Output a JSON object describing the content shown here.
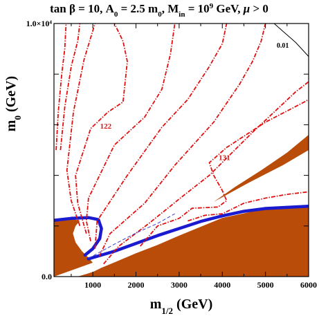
{
  "chart_data": {
    "type": "line",
    "title_parts": {
      "a": "tan ",
      "beta": "β",
      "b": " = 10, A",
      "sub0": "0",
      "c": " = 2.5 m",
      "sub1": "0",
      "d": ", M",
      "sub2": "in",
      "e": " = 10",
      "sup": "9",
      "f": " GeV, ",
      "mu": "μ",
      "g": " > 0"
    },
    "xlabel_main": "m",
    "xlabel_sub": "1/2",
    "xlabel_unit": " (GeV)",
    "ylabel_main": "m",
    "ylabel_sub": "0",
    "ylabel_unit": " (GeV)",
    "xlim": [
      100,
      6000
    ],
    "ylim": [
      0,
      10000
    ],
    "xticks": [
      1000,
      2000,
      3000,
      4000,
      5000,
      6000
    ],
    "xtick_labels": [
      "1000",
      "2000",
      "3000",
      "4000",
      "5000",
      "6000"
    ],
    "yticks": [
      0,
      10000
    ],
    "ytick_labels": [
      "0.0",
      "1.0×10⁴"
    ],
    "annotations": [
      {
        "text": "122",
        "x": 1300,
        "y": 5850
      },
      {
        "text": "131",
        "x": 4050,
        "y": 4600
      },
      {
        "text": "0.01",
        "x": 5400,
        "y": 9050
      }
    ],
    "colors": {
      "excluded_region": "#b84c08",
      "relic_density_strip": "#1a1ad0",
      "higgs_contours": "#e01010",
      "dashed_line": "#3a3ad8",
      "solid_line": "#000000"
    },
    "regions": {
      "stau_lsp_region": [
        [
          100,
          0
        ],
        [
          6000,
          0
        ],
        [
          6000,
          2780
        ],
        [
          5000,
          2680
        ],
        [
          4000,
          2320
        ],
        [
          3000,
          1620
        ],
        [
          2500,
          1250
        ],
        [
          2000,
          920
        ],
        [
          1500,
          560
        ],
        [
          1200,
          350
        ],
        [
          1000,
          180
        ],
        [
          650,
          0
        ]
      ],
      "left_region": [
        [
          100,
          0
        ],
        [
          100,
          2280
        ],
        [
          500,
          2300
        ],
        [
          700,
          2200
        ],
        [
          600,
          2000
        ],
        [
          540,
          1700
        ],
        [
          600,
          1350
        ],
        [
          750,
          1000
        ],
        [
          900,
          750
        ],
        [
          1000,
          550
        ]
      ],
      "upper_wedge": [
        [
          3800,
          2950
        ],
        [
          4600,
          3700
        ],
        [
          5400,
          4400
        ],
        [
          6000,
          5000
        ],
        [
          6000,
          5600
        ],
        [
          5500,
          4900
        ],
        [
          4900,
          4200
        ],
        [
          4300,
          3550
        ]
      ]
    },
    "relic_strips": [
      {
        "name": "upper-left",
        "points": [
          [
            100,
            2220
          ],
          [
            500,
            2300
          ],
          [
            900,
            2330
          ],
          [
            1130,
            2250
          ],
          [
            1200,
            1900
          ],
          [
            1160,
            1500
          ],
          [
            1000,
            1100
          ],
          [
            820,
            850
          ]
        ]
      },
      {
        "name": "lower",
        "points": [
          [
            900,
            700
          ],
          [
            1500,
            1000
          ],
          [
            2500,
            1620
          ],
          [
            3000,
            1900
          ],
          [
            3500,
            2180
          ],
          [
            4000,
            2400
          ],
          [
            4500,
            2580
          ],
          [
            5000,
            2690
          ],
          [
            6000,
            2780
          ]
        ]
      }
    ],
    "dashed_line": [
      [
        900,
        720
      ],
      [
        1500,
        1280
      ],
      [
        2000,
        1720
      ],
      [
        2500,
        2100
      ],
      [
        2900,
        2480
      ]
    ],
    "solid_line": [
      [
        5200,
        10000
      ],
      [
        5400,
        9700
      ],
      [
        5700,
        9250
      ],
      [
        6000,
        8700
      ]
    ],
    "series": [
      {
        "points": [
          [
            150,
            5000
          ],
          [
            200,
            6500
          ],
          [
            280,
            8000
          ],
          [
            350,
            9000
          ],
          [
            380,
            10000
          ]
        ]
      },
      {
        "points": [
          [
            250,
            5000
          ],
          [
            350,
            6700
          ],
          [
            500,
            8300
          ],
          [
            650,
            9300
          ],
          [
            700,
            10000
          ]
        ]
      },
      {
        "points": [
          [
            700,
            2000
          ],
          [
            500,
            3000
          ],
          [
            400,
            4200
          ],
          [
            550,
            6500
          ],
          [
            800,
            8600
          ],
          [
            1050,
            10000
          ]
        ]
      },
      {
        "points": [
          [
            850,
            1700
          ],
          [
            650,
            2900
          ],
          [
            600,
            4000
          ],
          [
            950,
            5850
          ],
          [
            1350,
            6500
          ],
          [
            1700,
            6900
          ],
          [
            1800,
            8500
          ],
          [
            1700,
            9300
          ],
          [
            1500,
            10000
          ]
        ]
      },
      {
        "points": [
          [
            950,
            1400
          ],
          [
            850,
            2200
          ],
          [
            900,
            3100
          ],
          [
            1500,
            5200
          ],
          [
            2200,
            6300
          ],
          [
            2600,
            7400
          ],
          [
            2800,
            8800
          ],
          [
            2900,
            10000
          ]
        ]
      },
      {
        "points": [
          [
            1050,
            1100
          ],
          [
            1100,
            2200
          ],
          [
            1800,
            4000
          ],
          [
            2600,
            5900
          ],
          [
            3200,
            7000
          ],
          [
            3700,
            8300
          ],
          [
            4000,
            9200
          ],
          [
            4100,
            10000
          ]
        ]
      },
      {
        "points": [
          [
            1150,
            800
          ],
          [
            1400,
            1700
          ],
          [
            2200,
            2900
          ],
          [
            2900,
            4400
          ],
          [
            3800,
            6100
          ],
          [
            4400,
            7600
          ],
          [
            4700,
            8500
          ],
          [
            4900,
            9300
          ],
          [
            5000,
            10000
          ]
        ]
      },
      {
        "points": [
          [
            1250,
            500
          ],
          [
            1600,
            1200
          ],
          [
            2300,
            2100
          ],
          [
            3100,
            3200
          ],
          [
            3700,
            4000
          ],
          [
            4700,
            5700
          ],
          [
            5700,
            7300
          ],
          [
            6000,
            7700
          ]
        ]
      },
      {
        "points": [
          [
            2100,
            1200
          ],
          [
            2500,
            2000
          ],
          [
            3000,
            2300
          ],
          [
            3300,
            2700
          ],
          [
            3900,
            2750
          ],
          [
            4100,
            3000
          ],
          [
            4000,
            3400
          ],
          [
            3800,
            4000
          ],
          [
            3700,
            4500
          ],
          [
            4100,
            5100
          ],
          [
            5000,
            6100
          ],
          [
            5900,
            6900
          ],
          [
            6000,
            7000
          ]
        ]
      },
      {
        "points": [
          [
            3200,
            2200
          ],
          [
            3600,
            2420
          ],
          [
            4000,
            2480
          ],
          [
            4500,
            2900
          ],
          [
            5000,
            3100
          ],
          [
            5500,
            3250
          ],
          [
            6000,
            3350
          ]
        ]
      }
    ]
  }
}
